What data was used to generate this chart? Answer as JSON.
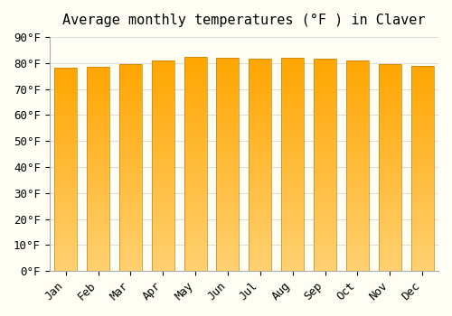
{
  "title": "Average monthly temperatures (°F ) in Claver",
  "months": [
    "Jan",
    "Feb",
    "Mar",
    "Apr",
    "May",
    "Jun",
    "Jul",
    "Aug",
    "Sep",
    "Oct",
    "Nov",
    "Dec"
  ],
  "values": [
    78,
    78.5,
    79.5,
    81,
    82.5,
    82,
    81.5,
    82,
    81.5,
    81,
    79.5,
    79
  ],
  "ylim": [
    0,
    90
  ],
  "ytick_step": 10,
  "bar_color_top": "#FFA500",
  "bar_color_bottom": "#FFD070",
  "bar_edge_color": "#C8820A",
  "background_color": "#FFFEF5",
  "grid_color": "#DDDDDD",
  "title_fontsize": 11,
  "tick_fontsize": 9,
  "font_family": "monospace"
}
